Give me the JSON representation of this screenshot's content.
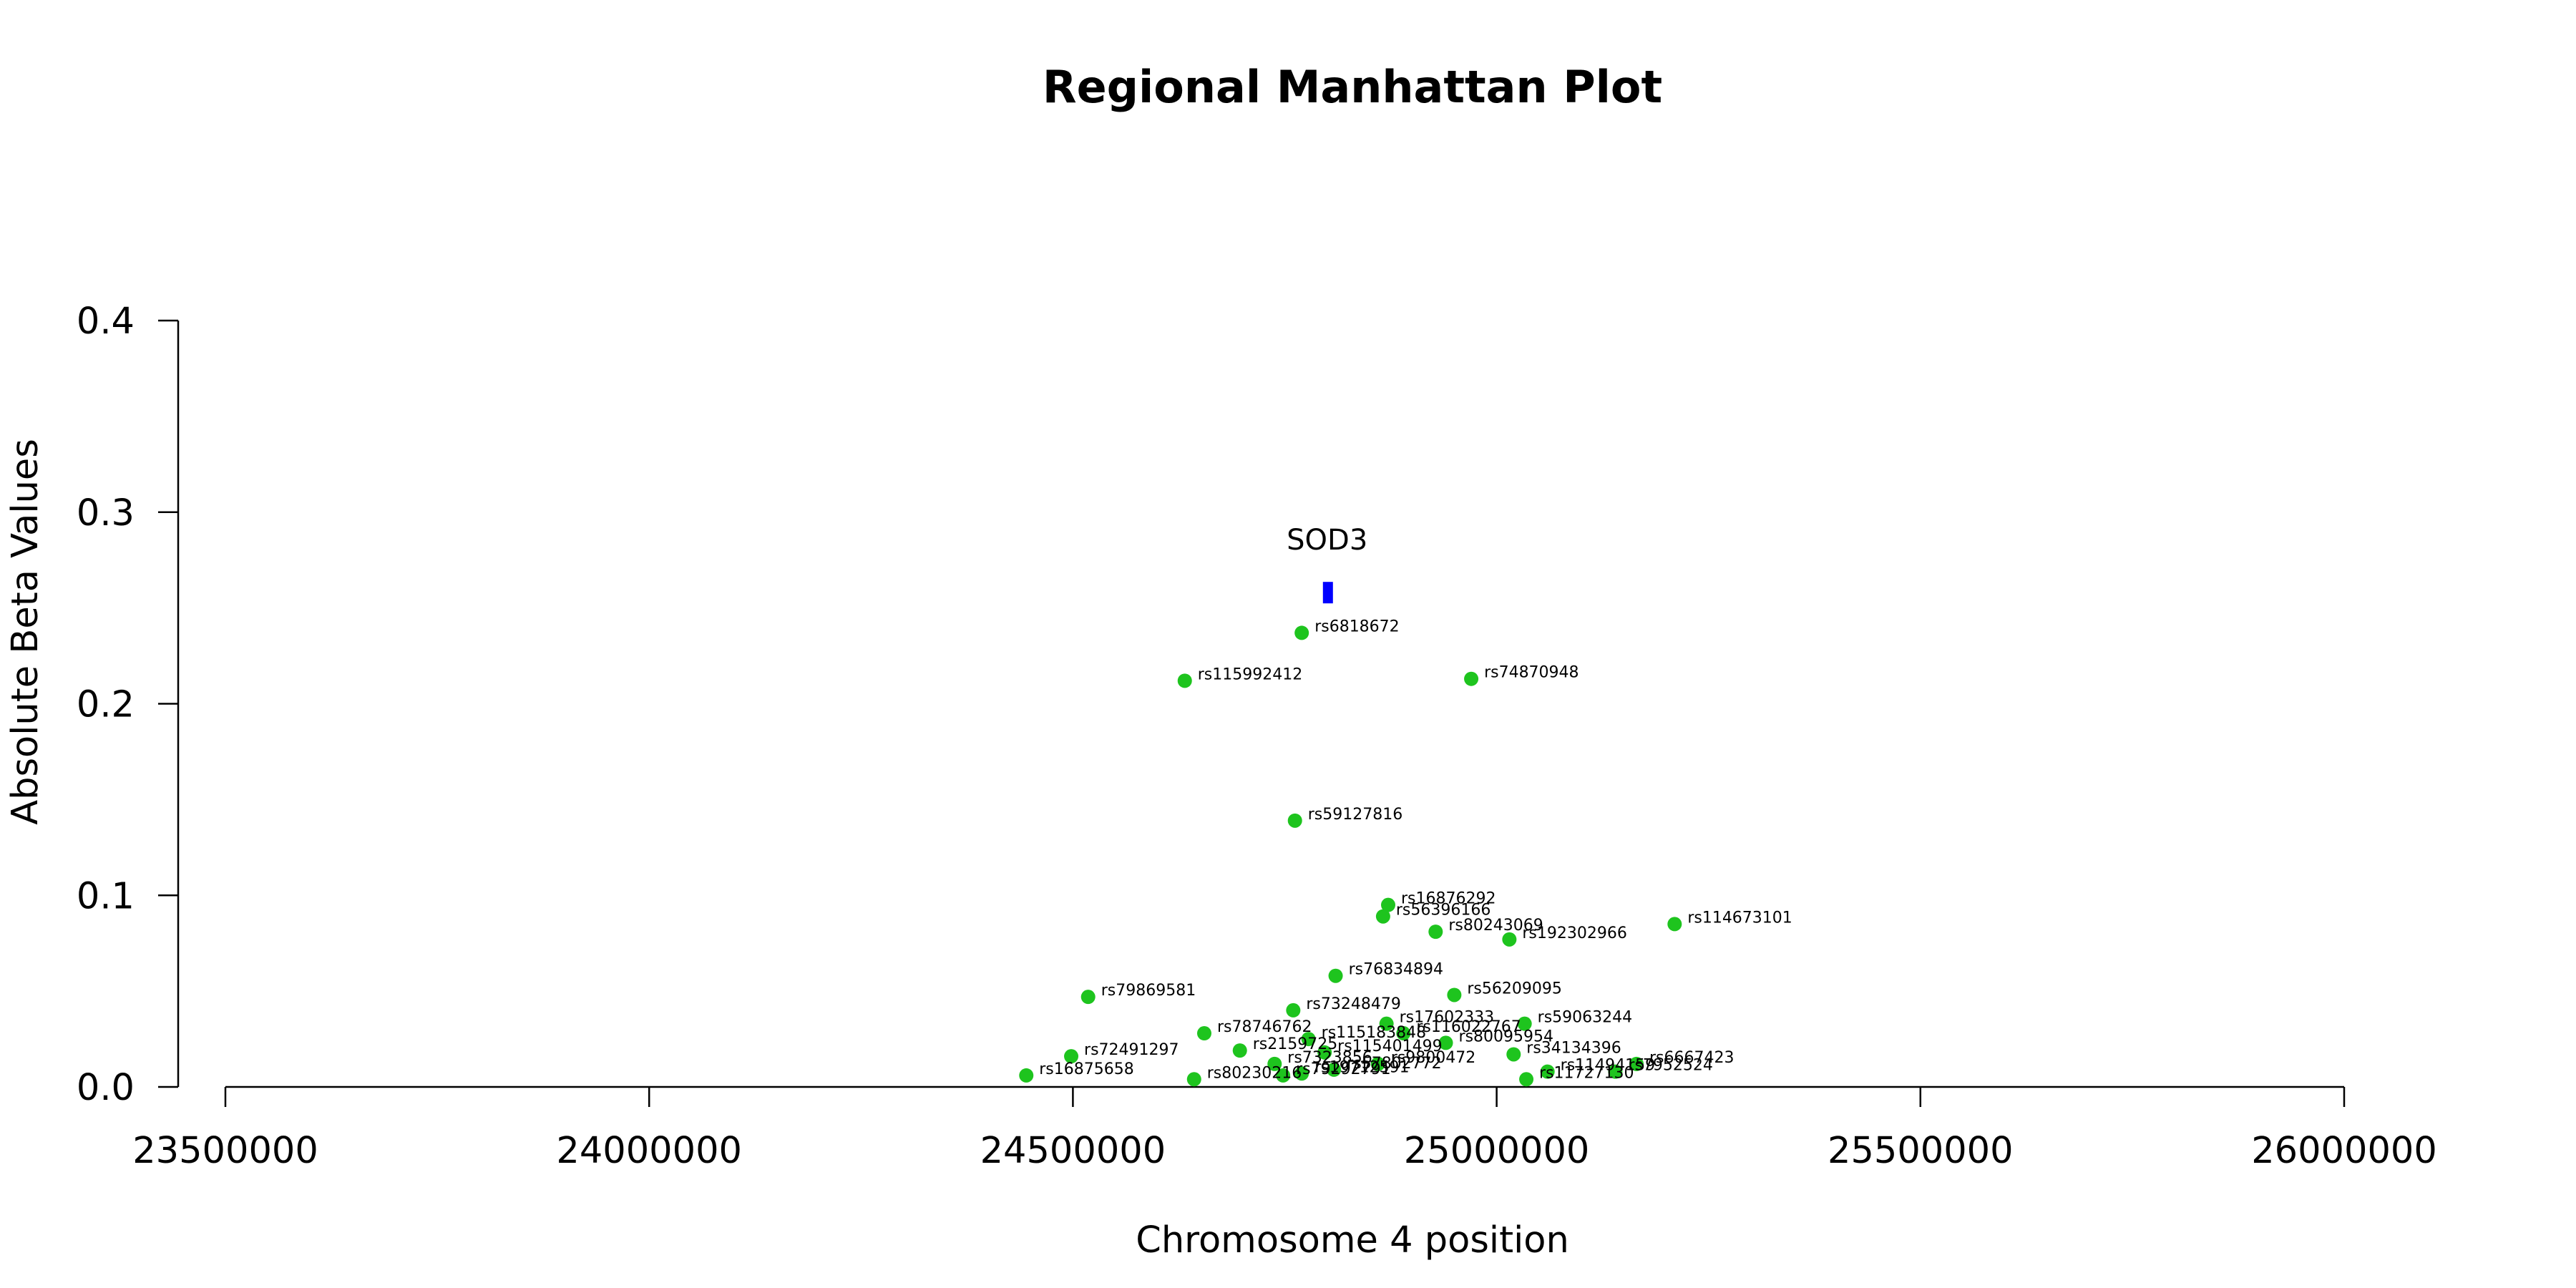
{
  "chart_data": {
    "type": "scatter",
    "title": "Regional Manhattan Plot",
    "xlabel": "Chromosome 4 position",
    "ylabel": "Absolute Beta Values",
    "xlim": [
      23500000,
      26000000
    ],
    "ylim": [
      0,
      0.4
    ],
    "x_ticks": [
      23500000,
      24000000,
      24500000,
      25000000,
      25500000,
      26000000
    ],
    "x_tick_labels": [
      "23500000",
      "24000000",
      "24500000",
      "25000000",
      "25500000",
      "26000000"
    ],
    "y_ticks": [
      0.0,
      0.1,
      0.2,
      0.3,
      0.4
    ],
    "y_tick_labels": [
      "0.0",
      "0.1",
      "0.2",
      "0.3",
      "0.4"
    ],
    "grid": false,
    "colors": {
      "points": "#1ec41e",
      "gene": "#0000ff",
      "axis": "#000000"
    },
    "gene": {
      "name": "SOD3",
      "start": 24795000,
      "end": 24805000,
      "y": 0.258
    },
    "points": [
      {
        "id": "rs6818672",
        "x": 24770000,
        "y": 0.237
      },
      {
        "id": "rs115992412",
        "x": 24632000,
        "y": 0.212
      },
      {
        "id": "rs74870948",
        "x": 24970000,
        "y": 0.213
      },
      {
        "id": "rs59127816",
        "x": 24762000,
        "y": 0.139
      },
      {
        "id": "rs16876292",
        "x": 24872000,
        "y": 0.095
      },
      {
        "id": "rs56396166",
        "x": 24866000,
        "y": 0.089
      },
      {
        "id": "rs80243069",
        "x": 24928000,
        "y": 0.081
      },
      {
        "id": "rs192302966",
        "x": 25015000,
        "y": 0.077
      },
      {
        "id": "rs114673101",
        "x": 25210000,
        "y": 0.085
      },
      {
        "id": "rs76834894",
        "x": 24810000,
        "y": 0.058
      },
      {
        "id": "rs56209095",
        "x": 24950000,
        "y": 0.048
      },
      {
        "id": "rs79869581",
        "x": 24518000,
        "y": 0.047
      },
      {
        "id": "rs73248479",
        "x": 24760000,
        "y": 0.04
      },
      {
        "id": "rs59063244",
        "x": 25033000,
        "y": 0.033
      },
      {
        "id": "rs17602333",
        "x": 24870000,
        "y": 0.033
      },
      {
        "id": "rs78746762",
        "x": 24655000,
        "y": 0.028
      },
      {
        "id": "rs115183848",
        "x": 24778000,
        "y": 0.025
      },
      {
        "id": "rs116022767",
        "x": 24890000,
        "y": 0.028
      },
      {
        "id": "rs80095954",
        "x": 24940000,
        "y": 0.023
      },
      {
        "id": "rs2159725",
        "x": 24697000,
        "y": 0.019
      },
      {
        "id": "rs115401499",
        "x": 24797000,
        "y": 0.018
      },
      {
        "id": "rs72491297",
        "x": 24498000,
        "y": 0.016
      },
      {
        "id": "rs34134396",
        "x": 25020000,
        "y": 0.017
      },
      {
        "id": "rs9800472",
        "x": 24860000,
        "y": 0.012
      },
      {
        "id": "rs7323856",
        "x": 24738000,
        "y": 0.012
      },
      {
        "id": "rs16875658",
        "x": 24445000,
        "y": 0.006
      },
      {
        "id": "rs80230216",
        "x": 24643000,
        "y": 0.004
      },
      {
        "id": "rs79292791",
        "x": 24748000,
        "y": 0.006
      },
      {
        "id": "rs57802772",
        "x": 24808000,
        "y": 0.009
      },
      {
        "id": "rs19712591",
        "x": 24770000,
        "y": 0.007
      },
      {
        "id": "rs11727130",
        "x": 25035000,
        "y": 0.004
      },
      {
        "id": "rs11494159",
        "x": 25060000,
        "y": 0.008
      },
      {
        "id": "rs6667423",
        "x": 25165000,
        "y": 0.012
      },
      {
        "id": "rs7952524",
        "x": 25140000,
        "y": 0.008
      }
    ]
  }
}
